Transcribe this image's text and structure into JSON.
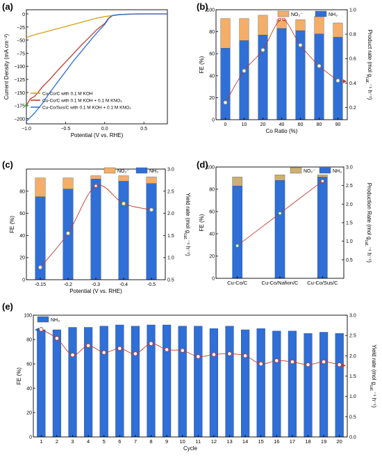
{
  "panel_labels": [
    "(a)",
    "(b)",
    "(c)",
    "(d)",
    "(e)"
  ],
  "colors": {
    "nh3_bar": "#2f6fd6",
    "no2_bar": "#f4ae68",
    "no2_bar_d": "#cdb075",
    "rate_line": "#c0392b",
    "lsv_koh": "#d4a017",
    "lsv_kno3": "#c0392b",
    "lsv_sus": "#2f6fd6",
    "arrow_blue": "#1f5fcf"
  },
  "chart_data": [
    {
      "id": "a",
      "type": "line",
      "xlabel": "Potential (V vs. RHE)",
      "ylabel": "Current Density (mA cm⁻²)",
      "xlim": [
        -1.0,
        0.8
      ],
      "ylim": [
        -210,
        8
      ],
      "xticks": [
        -1.0,
        -0.5,
        0.0,
        0.5
      ],
      "xtick_labels": [
        "−1.0",
        "−0.5",
        "0.0",
        "0.5"
      ],
      "yticks": [
        0,
        -25,
        -50,
        -75,
        -100,
        -125,
        -150,
        -175,
        -200
      ],
      "ytick_labels": [
        "0",
        "−25",
        "−50",
        "−75",
        "−100",
        "−125",
        "−150",
        "−175",
        "−200"
      ],
      "series": [
        {
          "name": "Cu-Co/C with 0.1 M KOH",
          "color": "lsv_koh",
          "x": [
            -1.0,
            -0.9,
            -0.8,
            -0.7,
            -0.6,
            -0.5,
            -0.4,
            -0.3,
            -0.2,
            -0.1,
            0.0,
            0.1,
            0.2,
            0.3,
            0.4,
            0.5,
            0.8
          ],
          "y": [
            -45,
            -40,
            -36,
            -32,
            -28,
            -24,
            -20,
            -16,
            -12,
            -8,
            -5,
            -3,
            -1.5,
            -0.8,
            -0.3,
            0,
            0
          ]
        },
        {
          "name": "Cu-Co/C with 0.1 M KOH + 0.1 M KNO₃",
          "color": "lsv_kno3",
          "x": [
            -1.0,
            -0.95,
            -0.9,
            -0.85,
            -0.8,
            -0.7,
            -0.6,
            -0.5,
            -0.4,
            -0.3,
            -0.2,
            -0.1,
            0.0,
            0.05,
            0.1,
            0.2,
            0.3,
            0.4,
            0.5,
            0.8
          ],
          "y": [
            -175,
            -162,
            -158,
            -150,
            -140,
            -125,
            -108,
            -92,
            -76,
            -60,
            -45,
            -30,
            -18,
            -8,
            -3,
            -1,
            -0.5,
            0,
            0,
            0
          ]
        },
        {
          "name": "Cu-Co/Sus/C with 0.1 M KOH + 0.1 M KNO₃",
          "color": "lsv_sus",
          "x": [
            -1.0,
            -0.9,
            -0.8,
            -0.7,
            -0.6,
            -0.5,
            -0.4,
            -0.3,
            -0.2,
            -0.1,
            0.0,
            0.05,
            0.1,
            0.2,
            0.3,
            0.4,
            0.5,
            0.8
          ],
          "y": [
            -205,
            -190,
            -172,
            -150,
            -130,
            -110,
            -90,
            -72,
            -54,
            -36,
            -20,
            -9,
            -3,
            -1,
            -0.5,
            0,
            0,
            0
          ]
        }
      ],
      "legend": "bottom-left"
    },
    {
      "id": "b",
      "type": "bar",
      "categories": [
        "0",
        "10",
        "20",
        "40",
        "60",
        "80",
        "90"
      ],
      "xlabel": "Co Ratio (%)",
      "ylabel": "FE (%)",
      "ylabel_right": "Product rate (mol g_cat.⁻¹ h⁻¹)",
      "ylim": [
        0,
        100
      ],
      "ylim_right": [
        0.1,
        1.0
      ],
      "yticks": [
        0,
        20,
        40,
        60,
        80,
        100
      ],
      "yticks_right": [
        0.2,
        0.4,
        0.6,
        0.8,
        1.0
      ],
      "ytick_labels_right": [
        "0.2",
        "0.4",
        "0.6",
        "0.8",
        "1.0"
      ],
      "series": [
        {
          "name": "NH₃",
          "values": [
            65,
            72,
            77,
            83,
            81,
            78,
            75
          ]
        },
        {
          "name": "NO₂⁻",
          "values": [
            27,
            20,
            18,
            8,
            10,
            16,
            13
          ]
        }
      ],
      "line": {
        "values": [
          0.24,
          0.5,
          0.67,
          0.92,
          0.71,
          0.54,
          0.42
        ]
      },
      "legend": "top-center"
    },
    {
      "id": "c",
      "type": "bar",
      "categories": [
        "-0.15",
        "-0.2",
        "-0.3",
        "-0.4",
        "-0.5"
      ],
      "xlabel": "Potential (V vs. RHE)",
      "ylabel": "FE (%)",
      "ylabel_right": "Yield rate (mol g_cat.⁻¹ h⁻¹)",
      "ylim": [
        0,
        100
      ],
      "ylim_right": [
        0.5,
        3.0
      ],
      "yticks": [
        0,
        20,
        40,
        60,
        80
      ],
      "yticks_right": [
        0.5,
        1.0,
        1.5,
        2.0,
        2.5,
        3.0
      ],
      "ytick_labels_right": [
        "0.5",
        "1.0",
        "1.5",
        "2.0",
        "2.5",
        "3.0"
      ],
      "series": [
        {
          "name": "NH₃",
          "values": [
            75,
            82,
            91,
            89,
            87
          ]
        },
        {
          "name": "NO₂⁻",
          "values": [
            17,
            10,
            3,
            5,
            6
          ]
        }
      ],
      "line": {
        "values": [
          0.78,
          1.55,
          2.62,
          2.22,
          2.08
        ]
      },
      "legend": "top-center"
    },
    {
      "id": "d",
      "type": "bar",
      "categories": [
        "Cu-Co/C",
        "Cu-Co/Nafion/C",
        "Cu-Co/Sus/C"
      ],
      "xlabel": "",
      "ylabel": "FE (%)",
      "ylabel_right": "Production Rate (mol g_cat.⁻¹ h⁻¹)",
      "ylim": [
        0,
        100
      ],
      "ylim_right": [
        0,
        3.0
      ],
      "yticks": [
        0,
        20,
        40,
        60,
        80,
        100
      ],
      "yticks_right": [
        0.5,
        1.0,
        1.5,
        2.0,
        2.5,
        3.0
      ],
      "ytick_labels_right": [
        "0.5",
        "1.0",
        "1.5",
        "2.0",
        "2.5",
        "3.0"
      ],
      "series": [
        {
          "name": "NH₃",
          "values": [
            83,
            88,
            91
          ]
        },
        {
          "name": "NO₂⁻",
          "values": [
            8,
            5,
            2
          ]
        }
      ],
      "line": {
        "values": [
          0.88,
          1.75,
          2.62
        ]
      },
      "legend": "top-right"
    },
    {
      "id": "e",
      "type": "bar",
      "categories": [
        "1",
        "2",
        "3",
        "4",
        "5",
        "6",
        "7",
        "8",
        "9",
        "10",
        "11",
        "12",
        "13",
        "14",
        "15",
        "16",
        "17",
        "18",
        "19",
        "20"
      ],
      "xlabel": "Cycle",
      "ylabel": "FE (%)",
      "ylabel_right": "Yield rate (mol g_cat.⁻¹ h⁻¹)",
      "ylim": [
        0,
        100
      ],
      "ylim_right": [
        0,
        3.0
      ],
      "yticks": [
        0,
        20,
        40,
        60,
        80,
        100
      ],
      "yticks_right": [
        0.0,
        0.5,
        1.0,
        1.5,
        2.0,
        2.5,
        3.0
      ],
      "ytick_labels_right": [
        "0.0",
        "0.5",
        "1.0",
        "1.5",
        "2.0",
        "2.5",
        "3.0"
      ],
      "series": [
        {
          "name": "NH₃",
          "values": [
            88,
            88,
            90,
            90,
            91,
            92,
            91,
            92,
            92,
            91,
            91,
            89,
            91,
            88,
            89,
            87,
            87,
            85,
            86,
            85
          ]
        }
      ],
      "line": {
        "values": [
          2.65,
          2.43,
          2.02,
          2.25,
          2.08,
          2.18,
          2.05,
          2.3,
          2.15,
          2.13,
          1.98,
          2.03,
          2.05,
          2.0,
          1.8,
          1.88,
          1.85,
          1.78,
          1.85,
          1.78
        ]
      },
      "legend": "top-left"
    }
  ]
}
